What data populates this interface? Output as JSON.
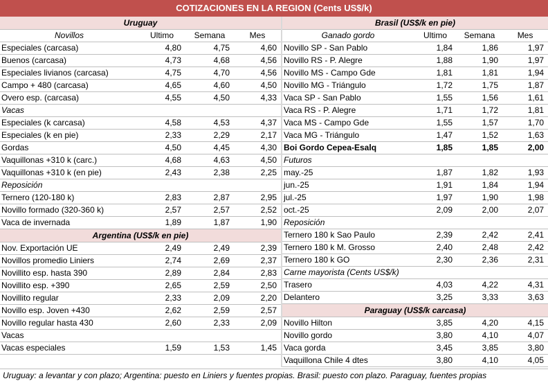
{
  "title": "COTIZACIONES EN LA REGION (Cents US$/k)",
  "uruguay": {
    "header": "Uruguay",
    "columns": [
      "Novillos",
      "Ultimo",
      "Semana",
      "Mes"
    ],
    "rows": [
      [
        "Especiales (carcasa)",
        "4,80",
        "4,75",
        "4,60"
      ],
      [
        "Buenos (carcasa)",
        "4,73",
        "4,68",
        "4,56"
      ],
      [
        "Especiales livianos (carcasa)",
        "4,75",
        "4,70",
        "4,56"
      ],
      [
        "Campo + 480 (carcasa)",
        "4,65",
        "4,60",
        "4,50"
      ],
      [
        "Overo esp. (carcasa)",
        "4,55",
        "4,50",
        "4,33"
      ],
      [
        "Vacas",
        "",
        "",
        ""
      ],
      [
        "Especiales (k carcasa)",
        "4,58",
        "4,53",
        "4,37"
      ],
      [
        "Especiales (k en pie)",
        "2,33",
        "2,29",
        "2,17"
      ],
      [
        "Gordas",
        "4,50",
        "4,45",
        "4,30"
      ],
      [
        "Vaquillonas +310 k (carc.)",
        "4,68",
        "4,63",
        "4,50"
      ],
      [
        "Vaquillonas +310 k (en pie)",
        "2,43",
        "2,38",
        "2,25"
      ],
      [
        "Reposición",
        "",
        "",
        ""
      ],
      [
        "Ternero (120-180 k)",
        "2,83",
        "2,87",
        "2,95"
      ],
      [
        "Novillo formado (320-360 k)",
        "2,57",
        "2,57",
        "2,52"
      ],
      [
        "Vaca de invernada",
        "1,89",
        "1,87",
        "1,90"
      ]
    ]
  },
  "argentina": {
    "header": "Argentina (US$/k en pie)",
    "rows": [
      [
        "Nov. Exportación UE",
        "2,49",
        "2,49",
        "2,39"
      ],
      [
        "Novillos promedio Liniers",
        "2,74",
        "2,69",
        "2,37"
      ],
      [
        "Novillito esp. hasta 390",
        "2,89",
        "2,84",
        "2,83"
      ],
      [
        "Novillito esp. +390",
        "2,65",
        "2,59",
        "2,50"
      ],
      [
        "Novillito regular",
        "2,33",
        "2,09",
        "2,20"
      ],
      [
        "Novillo esp. Joven +430",
        "2,62",
        "2,59",
        "2,57"
      ],
      [
        "Novillo regular hasta 430",
        "2,60",
        "2,33",
        "2,09"
      ],
      [
        "Vacas",
        "",
        "",
        ""
      ],
      [
        "Vacas especiales",
        "1,59",
        "1,53",
        "1,45"
      ]
    ]
  },
  "brasil": {
    "header": "Brasil (US$/k en pie)",
    "columns": [
      "Ganado gordo",
      "Ultimo",
      "Semana",
      "Mes"
    ],
    "rows": [
      [
        "Novillo SP - San Pablo",
        "1,84",
        "1,86",
        "1,97"
      ],
      [
        "Novillo RS - P. Alegre",
        "1,88",
        "1,90",
        "1,97"
      ],
      [
        "Novillo MS - Campo Gde",
        "1,81",
        "1,81",
        "1,94"
      ],
      [
        "Novillo MG - Triángulo",
        "1,72",
        "1,75",
        "1,87"
      ],
      [
        "Vaca SP - San Pablo",
        "1,55",
        "1,56",
        "1,61"
      ],
      [
        "Vaca RS - P. Alegre",
        "1,71",
        "1,72",
        "1,81"
      ],
      [
        "Vaca MS - Campo Gde",
        "1,55",
        "1,57",
        "1,70"
      ],
      [
        "Vaca MG - Triángulo",
        "1,47",
        "1,52",
        "1,63"
      ],
      [
        "Boi Gordo Cepea-Esalq",
        "1,85",
        "1,85",
        "2,00"
      ],
      [
        "Futuros",
        "",
        "",
        ""
      ],
      [
        "may.-25",
        "1,87",
        "1,82",
        "1,93"
      ],
      [
        "jun.-25",
        "1,91",
        "1,84",
        "1,94"
      ],
      [
        "jul.-25",
        "1,97",
        "1,90",
        "1,98"
      ],
      [
        "oct.-25",
        "2,09",
        "2,00",
        "2,07"
      ],
      [
        "Reposición",
        "",
        "",
        ""
      ],
      [
        "Ternero 180 k Sao Paulo",
        "2,39",
        "2,42",
        "2,41"
      ],
      [
        "Ternero 180 k M. Grosso",
        "2,40",
        "2,48",
        "2,42"
      ],
      [
        "Ternero 180 k GO",
        "2,30",
        "2,36",
        "2,31"
      ],
      [
        "Carne mayorista (Cents US$/k)",
        "",
        "",
        ""
      ],
      [
        "Trasero",
        "4,03",
        "4,22",
        "4,31"
      ],
      [
        "Delantero",
        "3,25",
        "3,33",
        "3,63"
      ]
    ]
  },
  "paraguay": {
    "header": "Paraguay (US$/k carcasa)",
    "rows": [
      [
        "Novillo Hilton",
        "3,85",
        "4,20",
        "4,15"
      ],
      [
        "Novillo gordo",
        "3,80",
        "4,10",
        "4,07"
      ],
      [
        "Vaca gorda",
        "3,45",
        "3,85",
        "3,80"
      ],
      [
        "Vaquillona Chile 4 dtes",
        "3,80",
        "4,10",
        "4,05"
      ]
    ]
  },
  "footer": "Uruguay: a levantar y con plazo; Argentina: puesto en Liniers y fuentes propias. Brasil: puesto con plazo. Paraguay, fuentes propias"
}
